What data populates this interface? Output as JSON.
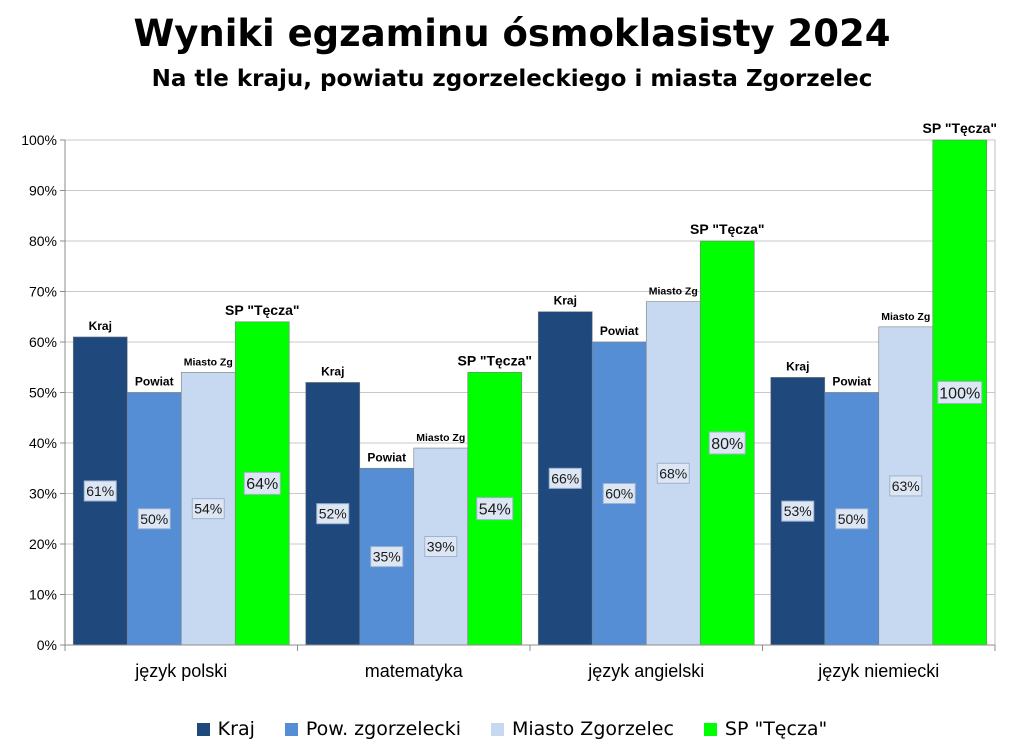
{
  "chart_data": {
    "type": "bar",
    "title": "Wyniki egzaminu ósmoklasisty 2024",
    "subtitle": "Na tle kraju, powiatu zgorzeleckiego i miasta Zgorzelec",
    "categories": [
      "język polski",
      "matematyka",
      "język angielski",
      "język niemiecki"
    ],
    "series": [
      {
        "name": "Kraj",
        "bar_label": "Kraj",
        "color": "#1f497d",
        "values": [
          61,
          52,
          66,
          53
        ]
      },
      {
        "name": "Pow. zgorzelecki",
        "bar_label": "Powiat",
        "color": "#558ed5",
        "values": [
          50,
          35,
          60,
          50
        ]
      },
      {
        "name": "Miasto Zgorzelec",
        "bar_label": "Miasto Zg",
        "color": "#c6d9f1",
        "values": [
          54,
          39,
          68,
          63
        ]
      },
      {
        "name": "SP \"Tęcza\"",
        "bar_label": "SP \"Tęcza\"",
        "color": "#00ff00",
        "values": [
          64,
          54,
          80,
          100
        ]
      }
    ],
    "data_labels": [
      [
        "61%",
        "52%",
        "66%",
        "53%"
      ],
      [
        "50%",
        "35%",
        "60%",
        "50%"
      ],
      [
        "54%",
        "39%",
        "68%",
        "63%"
      ],
      [
        "64%",
        "54%",
        "80%",
        "100%"
      ]
    ],
    "y_ticks": [
      "0%",
      "10%",
      "20%",
      "30%",
      "40%",
      "50%",
      "60%",
      "70%",
      "80%",
      "90%",
      "100%"
    ],
    "ylim": [
      0,
      100
    ],
    "grid": true,
    "legend_position": "bottom"
  }
}
